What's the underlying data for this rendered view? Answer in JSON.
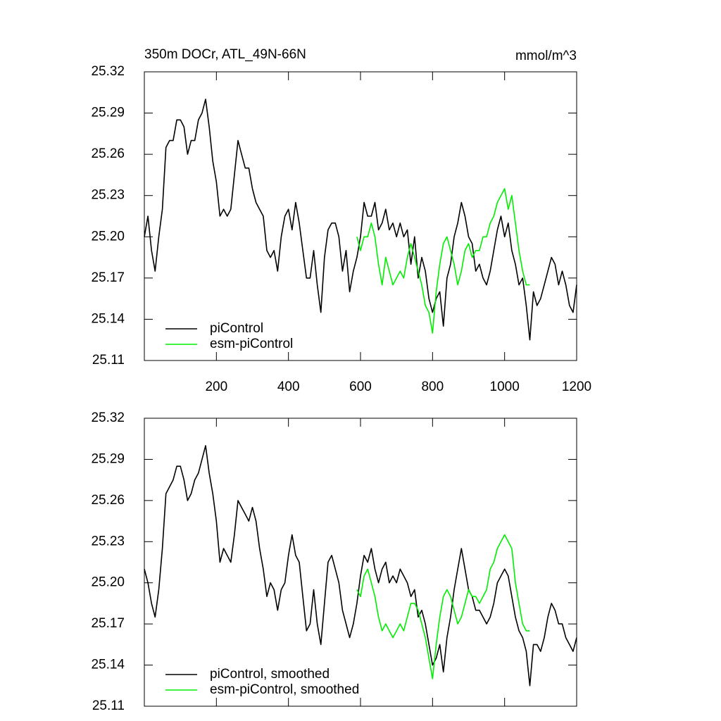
{
  "chart_data": [
    {
      "type": "line",
      "title": "350m DOCr, ATL_49N-66N",
      "units": "mmol/m^3",
      "x": [
        0,
        10,
        20,
        30,
        40,
        50,
        60,
        70,
        80,
        90,
        100,
        110,
        120,
        130,
        140,
        150,
        160,
        170,
        180,
        190,
        200,
        210,
        220,
        230,
        240,
        250,
        260,
        270,
        280,
        290,
        300,
        310,
        320,
        330,
        340,
        350,
        360,
        370,
        380,
        390,
        400,
        410,
        420,
        430,
        440,
        450,
        460,
        470,
        480,
        490,
        500,
        510,
        520,
        530,
        540,
        550,
        560,
        570,
        580,
        590,
        600,
        610,
        620,
        630,
        640,
        650,
        660,
        670,
        680,
        690,
        700,
        710,
        720,
        730,
        740,
        750,
        760,
        770,
        780,
        790,
        800,
        810,
        820,
        830,
        840,
        850,
        860,
        870,
        880,
        890,
        900,
        910,
        920,
        930,
        940,
        950,
        960,
        970,
        980,
        990,
        1000,
        1010,
        1020,
        1030,
        1040,
        1050,
        1060,
        1070,
        1080,
        1090,
        1100,
        1110,
        1120,
        1130,
        1140,
        1150,
        1160,
        1170,
        1180,
        1190,
        1200
      ],
      "series": [
        {
          "name": "piControl",
          "color": "#000000",
          "values": [
            25.2,
            25.215,
            25.19,
            25.175,
            25.2,
            25.22,
            25.265,
            25.27,
            25.27,
            25.285,
            25.285,
            25.28,
            25.26,
            25.27,
            25.27,
            25.285,
            25.29,
            25.3,
            25.28,
            25.255,
            25.24,
            25.215,
            25.22,
            25.215,
            25.22,
            25.245,
            25.27,
            25.26,
            25.25,
            25.25,
            25.235,
            25.225,
            25.22,
            25.215,
            25.19,
            25.185,
            25.19,
            25.175,
            25.2,
            25.215,
            25.22,
            25.205,
            25.225,
            25.21,
            25.19,
            25.17,
            25.17,
            25.19,
            25.165,
            25.145,
            25.185,
            25.205,
            25.21,
            25.21,
            25.2,
            25.175,
            25.19,
            25.16,
            25.175,
            25.185,
            25.2,
            25.225,
            25.215,
            25.215,
            25.225,
            25.205,
            25.21,
            25.22,
            25.205,
            25.21,
            25.2,
            25.21,
            25.2,
            25.205,
            25.18,
            25.2,
            25.17,
            25.185,
            25.175,
            25.155,
            25.145,
            25.155,
            25.16,
            25.135,
            25.17,
            25.18,
            25.2,
            25.21,
            25.225,
            25.215,
            25.2,
            25.195,
            25.175,
            25.18,
            25.17,
            25.165,
            25.175,
            25.19,
            25.205,
            25.215,
            25.2,
            25.21,
            25.19,
            25.18,
            25.165,
            25.17,
            25.15,
            25.125,
            25.16,
            25.15,
            25.155,
            25.165,
            25.175,
            25.185,
            25.18,
            25.165,
            25.175,
            25.165,
            25.15,
            25.145,
            25.165
          ]
        },
        {
          "name": "esm-piControl",
          "color": "#00ee00",
          "values": [
            null,
            null,
            null,
            null,
            null,
            null,
            null,
            null,
            null,
            null,
            null,
            null,
            null,
            null,
            null,
            null,
            null,
            null,
            null,
            null,
            null,
            null,
            null,
            null,
            null,
            null,
            null,
            null,
            null,
            null,
            null,
            null,
            null,
            null,
            null,
            null,
            null,
            null,
            null,
            null,
            null,
            null,
            null,
            null,
            null,
            null,
            null,
            null,
            null,
            null,
            null,
            null,
            null,
            null,
            null,
            null,
            null,
            null,
            null,
            25.2,
            25.19,
            25.2,
            25.2,
            25.21,
            25.2,
            25.18,
            25.165,
            25.185,
            25.175,
            25.165,
            25.17,
            25.175,
            25.17,
            25.185,
            25.195,
            25.185,
            25.175,
            25.165,
            25.15,
            25.145,
            25.13,
            25.16,
            25.18,
            25.195,
            25.2,
            25.19,
            25.18,
            25.165,
            25.175,
            25.19,
            25.195,
            25.185,
            25.19,
            25.19,
            25.2,
            25.2,
            25.21,
            25.215,
            25.225,
            25.23,
            25.235,
            25.22,
            25.23,
            25.21,
            25.19,
            25.175,
            25.165,
            25.165,
            null,
            null,
            null,
            null,
            null,
            null,
            null,
            null,
            null,
            null,
            null,
            null,
            null
          ]
        }
      ],
      "xlim": [
        0,
        1200
      ],
      "xticks": [
        200,
        400,
        600,
        800,
        1000,
        1200
      ],
      "xtick_labels": true,
      "ylim": [
        25.11,
        25.32
      ],
      "yticks": [
        25.11,
        25.14,
        25.17,
        {
          "value": 25.2,
          "label": "25.20"
        },
        25.23,
        25.26,
        25.29,
        25.32
      ],
      "legend": "lower left"
    },
    {
      "type": "line",
      "x": [
        0,
        10,
        20,
        30,
        40,
        50,
        60,
        70,
        80,
        90,
        100,
        110,
        120,
        130,
        140,
        150,
        160,
        170,
        180,
        190,
        200,
        210,
        220,
        230,
        240,
        250,
        260,
        270,
        280,
        290,
        300,
        310,
        320,
        330,
        340,
        350,
        360,
        370,
        380,
        390,
        400,
        410,
        420,
        430,
        440,
        450,
        460,
        470,
        480,
        490,
        500,
        510,
        520,
        530,
        540,
        550,
        560,
        570,
        580,
        590,
        600,
        610,
        620,
        630,
        640,
        650,
        660,
        670,
        680,
        690,
        700,
        710,
        720,
        730,
        740,
        750,
        760,
        770,
        780,
        790,
        800,
        810,
        820,
        830,
        840,
        850,
        860,
        870,
        880,
        890,
        900,
        910,
        920,
        930,
        940,
        950,
        960,
        970,
        980,
        990,
        1000,
        1010,
        1020,
        1030,
        1040,
        1050,
        1060,
        1070,
        1080,
        1090,
        1100,
        1110,
        1120,
        1130,
        1140,
        1150,
        1160,
        1170,
        1180,
        1190,
        1200
      ],
      "series": [
        {
          "name": "piControl, smoothed",
          "color": "#000000",
          "values": [
            25.21,
            25.2,
            25.185,
            25.175,
            25.195,
            25.225,
            25.265,
            25.27,
            25.275,
            25.285,
            25.285,
            25.275,
            25.26,
            25.265,
            25.275,
            25.28,
            25.29,
            25.3,
            25.28,
            25.265,
            25.245,
            25.215,
            25.225,
            25.22,
            25.215,
            25.235,
            25.26,
            25.255,
            25.25,
            25.245,
            25.255,
            25.245,
            25.225,
            25.21,
            25.19,
            25.2,
            25.195,
            25.18,
            25.195,
            25.2,
            25.22,
            25.235,
            25.22,
            25.215,
            25.19,
            25.165,
            25.17,
            25.195,
            25.17,
            25.155,
            25.185,
            25.215,
            25.22,
            25.21,
            25.2,
            25.18,
            25.17,
            25.16,
            25.17,
            25.185,
            25.205,
            25.22,
            25.215,
            25.225,
            25.21,
            25.2,
            25.21,
            25.215,
            25.2,
            25.205,
            25.2,
            25.21,
            25.205,
            25.2,
            25.19,
            25.195,
            25.175,
            25.18,
            25.17,
            25.155,
            25.14,
            25.145,
            25.155,
            25.135,
            25.16,
            25.175,
            25.195,
            25.21,
            25.225,
            25.21,
            25.195,
            25.19,
            25.18,
            25.18,
            25.175,
            25.17,
            25.175,
            25.185,
            25.2,
            25.205,
            25.21,
            25.205,
            25.19,
            25.175,
            25.165,
            25.16,
            25.15,
            25.125,
            25.155,
            25.155,
            25.15,
            25.16,
            25.175,
            25.185,
            25.18,
            25.17,
            25.17,
            25.16,
            25.155,
            25.15,
            25.16
          ]
        },
        {
          "name": "esm-piControl, smoothed",
          "color": "#00ee00",
          "values": [
            null,
            null,
            null,
            null,
            null,
            null,
            null,
            null,
            null,
            null,
            null,
            null,
            null,
            null,
            null,
            null,
            null,
            null,
            null,
            null,
            null,
            null,
            null,
            null,
            null,
            null,
            null,
            null,
            null,
            null,
            null,
            null,
            null,
            null,
            null,
            null,
            null,
            null,
            null,
            null,
            null,
            null,
            null,
            null,
            null,
            null,
            null,
            null,
            null,
            null,
            null,
            null,
            null,
            null,
            null,
            null,
            null,
            null,
            null,
            25.195,
            25.19,
            25.205,
            25.21,
            25.2,
            25.19,
            25.175,
            25.165,
            25.17,
            25.165,
            25.16,
            25.165,
            25.17,
            25.165,
            25.175,
            25.185,
            25.185,
            25.18,
            25.17,
            25.16,
            25.145,
            25.13,
            25.155,
            25.175,
            25.19,
            25.195,
            25.19,
            25.18,
            25.17,
            25.175,
            25.185,
            25.195,
            25.19,
            25.19,
            25.185,
            25.19,
            25.195,
            25.21,
            25.215,
            25.225,
            25.23,
            25.235,
            25.23,
            25.225,
            25.2,
            25.185,
            25.17,
            25.165,
            25.165,
            null,
            null,
            null,
            null,
            null,
            null,
            null,
            null,
            null,
            null,
            null,
            null,
            null
          ]
        }
      ],
      "xlim": [
        0,
        1200
      ],
      "xticks": [
        200,
        400,
        600,
        800,
        1000,
        1200
      ],
      "xtick_labels": false,
      "ylim": [
        25.11,
        25.32
      ],
      "yticks": [
        25.11,
        25.14,
        25.17,
        {
          "value": 25.2,
          "label": "25.20"
        },
        25.23,
        25.26,
        25.29,
        25.32
      ],
      "legend": "lower left"
    }
  ]
}
